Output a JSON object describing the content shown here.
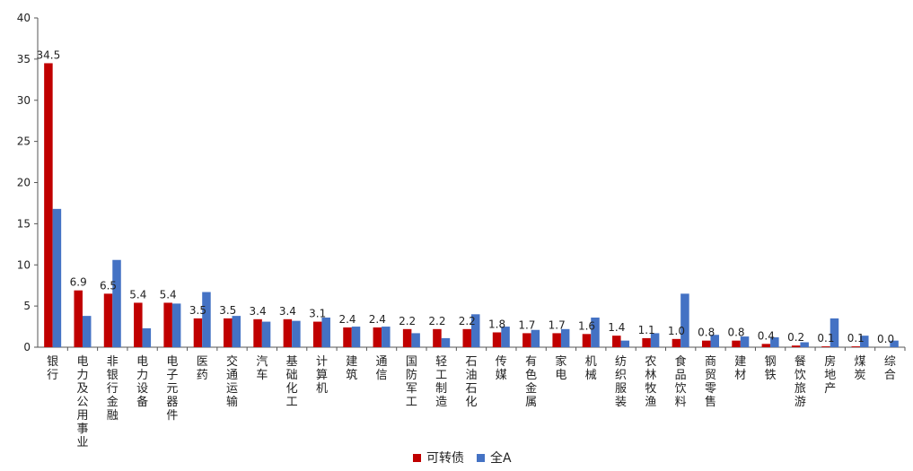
{
  "chart_data": {
    "type": "bar",
    "categories": [
      "银行",
      "电力及公用事业",
      "非银行金融",
      "电力设备",
      "电子元器件",
      "医药",
      "交通运输",
      "汽车",
      "基础化工",
      "计算机",
      "建筑",
      "通信",
      "国防军工",
      "轻工制造",
      "石油石化",
      "传媒",
      "有色金属",
      "家电",
      "机械",
      "纺织服装",
      "农林牧渔",
      "食品饮料",
      "商贸零售",
      "建材",
      "钢铁",
      "餐饮旅游",
      "房地产",
      "煤炭",
      "综合"
    ],
    "series": [
      {
        "name": "可转债",
        "values": [
          34.5,
          6.9,
          6.5,
          5.4,
          5.4,
          3.5,
          3.5,
          3.4,
          3.4,
          3.1,
          2.4,
          2.4,
          2.2,
          2.2,
          2.2,
          1.8,
          1.7,
          1.7,
          1.6,
          1.4,
          1.1,
          1.0,
          0.8,
          0.8,
          0.4,
          0.2,
          0.1,
          0.1,
          0.0
        ],
        "color": "#c00000"
      },
      {
        "name": "全A",
        "values": [
          16.8,
          3.8,
          10.6,
          2.3,
          5.3,
          6.7,
          3.8,
          3.1,
          3.2,
          3.6,
          2.5,
          2.5,
          1.7,
          1.1,
          4.0,
          2.5,
          2.1,
          2.2,
          3.6,
          0.8,
          1.7,
          6.5,
          1.5,
          1.3,
          1.2,
          0.6,
          3.5,
          1.4,
          0.8
        ],
        "color": "#4472c4"
      }
    ],
    "data_labels": [
      "34.5",
      "6.9",
      "6.5",
      "5.4",
      "5.4",
      "3.5",
      "3.5",
      "3.4",
      "3.4",
      "3.1",
      "2.4",
      "2.4",
      "2.2",
      "2.2",
      "2.2",
      "1.8",
      "1.7",
      "1.7",
      "1.6",
      "1.4",
      "1.1",
      "1.0",
      "0.8",
      "0.8",
      "0.4",
      "0.2",
      "0.1",
      "0.1",
      "0.0"
    ],
    "yticks": [
      "0",
      "5",
      "10",
      "15",
      "20",
      "25",
      "30",
      "35",
      "40"
    ],
    "ylim": [
      0,
      40
    ],
    "grid": false,
    "legend": "bottom-center"
  }
}
